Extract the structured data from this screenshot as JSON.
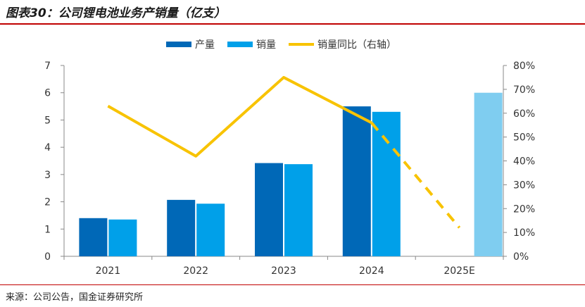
{
  "header": {
    "title": "图表30：公司锂电池业务产销量（亿支）"
  },
  "footer": {
    "source": "来源：公司公告，国金证券研究所"
  },
  "colors": {
    "production": "#0068b7",
    "sales": "#00a0e9",
    "ratio": "#f8c300",
    "forecast": "#7fcdf0",
    "axis": "#888888"
  },
  "chart_data": {
    "type": "bar",
    "categories": [
      "2021",
      "2022",
      "2023",
      "2024",
      "2025E"
    ],
    "series": [
      {
        "name": "产量",
        "type": "bar",
        "axis": "left",
        "values": [
          1.4,
          2.07,
          3.42,
          5.5,
          null
        ]
      },
      {
        "name": "销量",
        "type": "bar",
        "axis": "left",
        "values": [
          1.35,
          1.93,
          3.38,
          5.3,
          6.0
        ]
      },
      {
        "name": "销量同比（右轴）",
        "type": "line",
        "axis": "right",
        "values": [
          0.63,
          0.42,
          0.75,
          0.56,
          0.12
        ],
        "dashed_from_index": 3
      }
    ],
    "ylim": [
      0,
      7
    ],
    "y_ticks": [
      "0",
      "1",
      "2",
      "3",
      "4",
      "5",
      "6",
      "7"
    ],
    "y2lim": [
      0,
      0.8
    ],
    "y2_ticks": [
      "0%",
      "10%",
      "20%",
      "30%",
      "40%",
      "50%",
      "60%",
      "70%",
      "80%"
    ],
    "legend": "top",
    "grid": false
  }
}
